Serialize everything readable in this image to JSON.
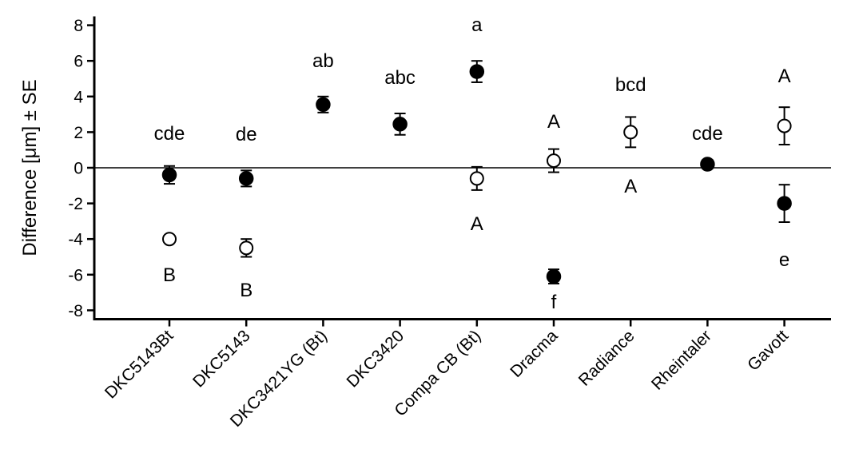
{
  "chart_data": {
    "type": "scatter",
    "ylabel": "Difference [μm] ± SE",
    "ylim": [
      -8.5,
      8.5
    ],
    "yticks": [
      8,
      6,
      4,
      2,
      0,
      -2,
      -4,
      -6,
      -8
    ],
    "reference_line_y": 0,
    "categories": [
      "DKC5143Bt",
      "DKC5143",
      "DKC3421YG (Bt)",
      "DKC3420",
      "Compa CB (Bt)",
      "Dracma",
      "Radiance",
      "Rheintaler",
      "Gavott"
    ],
    "series": [
      {
        "marker": "filled",
        "color": "#000000",
        "points": [
          {
            "category": "DKC5143Bt",
            "y": -0.4,
            "se": 0.5,
            "letter": "cde",
            "letter_pos": "above"
          },
          {
            "category": "DKC5143",
            "y": -0.6,
            "se": 0.45,
            "letter": "de",
            "letter_pos": "above"
          },
          {
            "category": "DKC3421YG (Bt)",
            "y": 3.55,
            "se": 0.45,
            "letter": "ab",
            "letter_pos": "above"
          },
          {
            "category": "DKC3420",
            "y": 2.45,
            "se": 0.6,
            "letter": "abc",
            "letter_pos": "above"
          },
          {
            "category": "Compa CB (Bt)",
            "y": 5.4,
            "se": 0.6,
            "letter": "a",
            "letter_pos": "above"
          },
          {
            "category": "Dracma",
            "y": -6.1,
            "se": 0.4,
            "letter": "f",
            "letter_pos": "below"
          },
          {
            "category": "Radiance",
            "y": null,
            "se": null,
            "letter": "bcd",
            "letter_pos": "above"
          },
          {
            "category": "Rheintaler",
            "y": 0.2,
            "se": 0.25,
            "letter": "cde",
            "letter_pos": "above"
          },
          {
            "category": "Gavott",
            "y": -2.0,
            "se": 1.05,
            "letter": "e",
            "letter_pos": "below"
          }
        ]
      },
      {
        "marker": "open",
        "color": "#000000",
        "points": [
          {
            "category": "DKC5143Bt",
            "y": -4.0,
            "se": 0.2,
            "letter": "B",
            "letter_pos": "below"
          },
          {
            "category": "DKC5143",
            "y": -4.5,
            "se": 0.5,
            "letter": "B",
            "letter_pos": "below"
          },
          {
            "category": "Compa CB (Bt)",
            "y": -0.6,
            "se": 0.65,
            "letter": "A",
            "letter_pos": "below"
          },
          {
            "category": "Dracma",
            "y": 0.4,
            "se": 0.65,
            "letter": "A",
            "letter_pos": "above"
          },
          {
            "category": "Radiance",
            "y": 2.0,
            "se": 0.85,
            "letter": "A",
            "letter_pos": "below"
          },
          {
            "category": "Gavott",
            "y": 2.35,
            "se": 1.05,
            "letter": "A",
            "letter_pos": "above"
          }
        ]
      }
    ]
  }
}
